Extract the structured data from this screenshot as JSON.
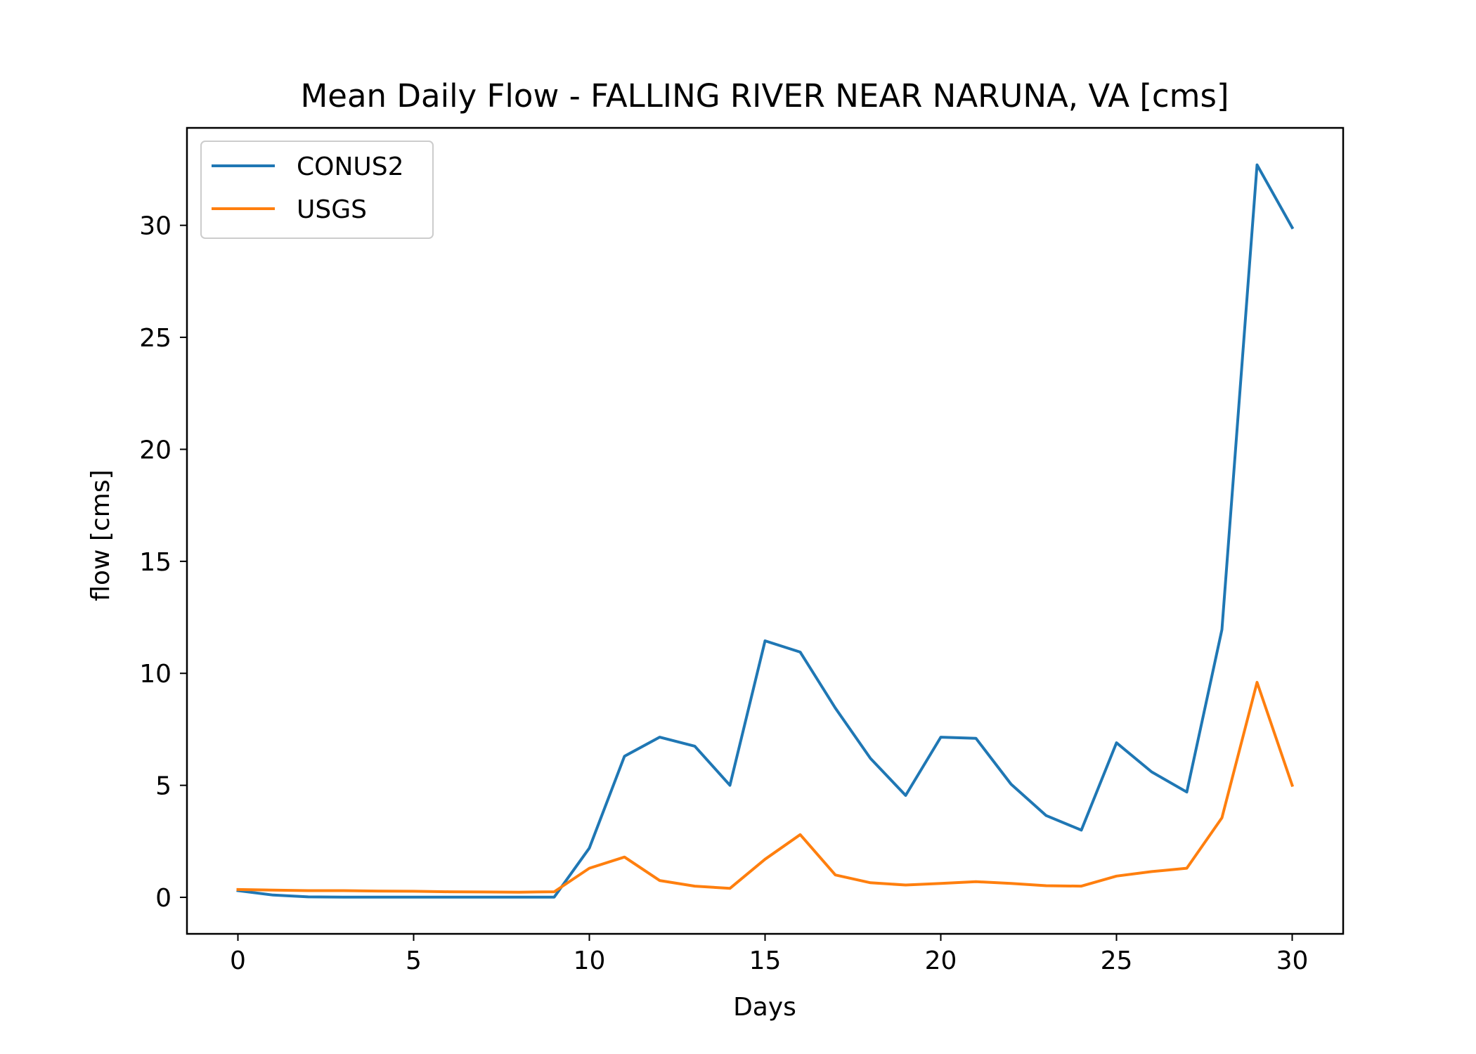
{
  "chart_data": {
    "type": "line",
    "title": "Mean Daily Flow - FALLING RIVER NEAR NARUNA, VA [cms]",
    "xlabel": "Days",
    "ylabel": "flow [cms]",
    "xlim": [
      -1.45,
      31.45
    ],
    "ylim": [
      -1.63,
      34.35
    ],
    "xticks": [
      0,
      5,
      10,
      15,
      20,
      25,
      30
    ],
    "yticks": [
      0,
      5,
      10,
      15,
      20,
      25,
      30
    ],
    "grid": false,
    "legend_position": "upper left",
    "x": [
      0,
      1,
      2,
      3,
      4,
      5,
      6,
      7,
      8,
      9,
      10,
      11,
      12,
      13,
      14,
      15,
      16,
      17,
      18,
      19,
      20,
      21,
      22,
      23,
      24,
      25,
      26,
      27,
      28,
      29,
      30
    ],
    "series": [
      {
        "name": "CONUS2",
        "color": "#1f77b4",
        "values": [
          0.3,
          0.1,
          0.02,
          0.01,
          0.01,
          0.01,
          0.01,
          0.01,
          0.01,
          0.01,
          2.2,
          6.3,
          7.15,
          6.75,
          5.0,
          11.45,
          10.95,
          8.45,
          6.2,
          4.55,
          7.15,
          7.1,
          5.05,
          3.65,
          3.0,
          6.9,
          5.6,
          4.7,
          11.95,
          32.7,
          29.9
        ]
      },
      {
        "name": "USGS",
        "color": "#ff7f0e",
        "values": [
          0.35,
          0.32,
          0.3,
          0.3,
          0.28,
          0.27,
          0.25,
          0.24,
          0.23,
          0.25,
          1.3,
          1.8,
          0.75,
          0.5,
          0.4,
          1.7,
          2.8,
          1.0,
          0.65,
          0.55,
          0.62,
          0.7,
          0.62,
          0.52,
          0.5,
          0.95,
          1.15,
          1.3,
          3.55,
          9.6,
          5.0
        ]
      }
    ]
  }
}
